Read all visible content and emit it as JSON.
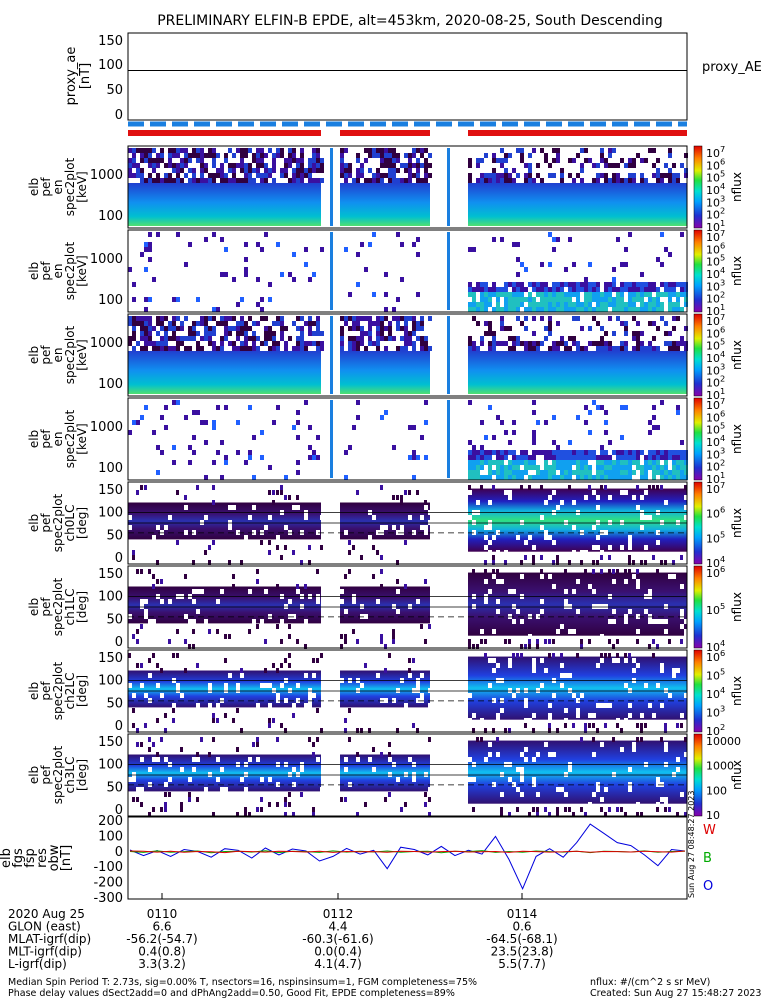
{
  "title": "PRELIMINARY ELFIN-B EPDE, alt=453km, 2020-08-25, South Descending",
  "proxy_panel": {
    "ylabel_lines": [
      "proxy_ae",
      "[nT]"
    ],
    "y_ticks": [
      "150",
      "100",
      "50",
      "0"
    ],
    "legend": "proxy_AE",
    "value": 88
  },
  "spectra_panels": [
    {
      "ylabel_lines": [
        "elb",
        "pef",
        "en",
        "spec2plot",
        "[keV]"
      ],
      "ylabel_top": "",
      "y_ticks": [
        "1000",
        "100"
      ],
      "cbar_ticks": [
        "10^7",
        "10^6",
        "10^5",
        "10^4",
        "10^3",
        "10^2",
        "10^1"
      ],
      "cbar_label": "nflux"
    },
    {
      "ylabel_lines": [
        "elb",
        "pef",
        "en",
        "spec2plot",
        "[keV]"
      ],
      "ylabel_top": "",
      "y_ticks": [
        "1000",
        "100"
      ],
      "cbar_ticks": [
        "10^7",
        "10^6",
        "10^5",
        "10^4",
        "10^3",
        "10^2",
        "10^1"
      ],
      "cbar_label": "nflux"
    },
    {
      "ylabel_lines": [
        "elb",
        "pef",
        "en",
        "spec2plot",
        "[keV]"
      ],
      "ylabel_top": "",
      "y_ticks": [
        "1000",
        "100"
      ],
      "cbar_ticks": [
        "10^7",
        "10^6",
        "10^5",
        "10^4",
        "10^3",
        "10^2",
        "10^1"
      ],
      "cbar_label": "nflux"
    },
    {
      "ylabel_lines": [
        "elb",
        "pef",
        "en",
        "spec2plot",
        "[keV]"
      ],
      "ylabel_top": "",
      "y_ticks": [
        "1000",
        "100"
      ],
      "cbar_ticks": [
        "10^7",
        "10^6",
        "10^5",
        "10^4",
        "10^3",
        "10^2",
        "10^1"
      ],
      "cbar_label": "nflux"
    }
  ],
  "pitch_panels": [
    {
      "ylabel_lines": [
        "elb",
        "pef",
        "spec2plot",
        "ch0LC",
        "[deg]"
      ],
      "y_ticks": [
        "150",
        "100",
        "50",
        "0"
      ],
      "cbar_ticks": [
        "10^7",
        "10^6",
        "10^5",
        "10^4"
      ],
      "cbar_label": "nflux"
    },
    {
      "ylabel_lines": [
        "elb",
        "pef",
        "spec2plot",
        "ch1LC",
        "[deg]"
      ],
      "y_ticks": [
        "150",
        "100",
        "50",
        "0"
      ],
      "cbar_ticks": [
        "10^6",
        "10^5",
        "10^4"
      ],
      "cbar_label": "nflux"
    },
    {
      "ylabel_lines": [
        "elb",
        "pef",
        "spec2plot",
        "ch2LC",
        "[deg]"
      ],
      "y_ticks": [
        "150",
        "100",
        "50",
        "0"
      ],
      "cbar_ticks": [
        "10^6",
        "10^5",
        "10^4",
        "10^3",
        "10^2"
      ],
      "cbar_label": "nflux"
    },
    {
      "ylabel_lines": [
        "elb",
        "pef",
        "spec2plot",
        "ch3LC",
        "[deg]"
      ],
      "y_ticks": [
        "150",
        "100",
        "50",
        "0"
      ],
      "cbar_ticks": [
        "10000",
        "1000",
        "100",
        "10"
      ],
      "cbar_label": "nflux"
    }
  ],
  "bottom_panel": {
    "ylabel_lines": [
      "elb",
      "fgs",
      "fsp",
      "res",
      "obw",
      "[nT]"
    ],
    "y_ticks": [
      "200",
      "100",
      "0",
      "-100",
      "-200",
      "-300"
    ],
    "legend": [
      {
        "label": "W",
        "color": "#dd0000"
      },
      {
        "label": "B",
        "color": "#00aa00"
      },
      {
        "label": "O",
        "color": "#0000dd"
      }
    ],
    "side_note": "Sun Aug 27 08:48:27 2023"
  },
  "chart_data": {
    "type": "line",
    "x_tick_labels": [
      "0110",
      "0112",
      "0114"
    ],
    "proxy_ae_nT": 88,
    "fgs_res_nT": {
      "W": [
        5,
        3,
        -2,
        4,
        -3,
        2,
        0,
        -5,
        3,
        1,
        -2,
        4,
        2,
        -1,
        3,
        -4,
        2,
        0,
        1,
        -3,
        4,
        2,
        -2,
        1,
        3,
        -1,
        0,
        2,
        -4,
        3,
        1,
        -2,
        0,
        4,
        -3,
        2,
        1,
        -1,
        3,
        0,
        -2,
        5
      ],
      "B": [
        2,
        -4,
        6,
        -3,
        1,
        5,
        -6,
        2,
        4,
        -2,
        7,
        -5,
        3,
        1,
        -4,
        6,
        -2,
        3,
        -1,
        5,
        -3,
        2,
        4,
        -6,
        3,
        1,
        8,
        -4,
        2,
        -3,
        5,
        1,
        -2,
        4,
        -5,
        3,
        2,
        -1,
        6,
        -3,
        2,
        4
      ],
      "O": [
        12,
        -25,
        8,
        -30,
        15,
        2,
        -35,
        20,
        10,
        -40,
        25,
        -20,
        18,
        5,
        -60,
        -30,
        22,
        -15,
        10,
        -110,
        30,
        15,
        -20,
        35,
        -25,
        10,
        -15,
        100,
        -50,
        -240,
        -30,
        20,
        -35,
        60,
        180,
        120,
        60,
        40,
        -20,
        -90,
        15,
        5
      ]
    }
  },
  "footer": {
    "rows": [
      {
        "label": "2020 Aug 25",
        "values": [
          "0110",
          "0112",
          "0114"
        ]
      },
      {
        "label": "GLON (east)",
        "values": [
          "6.6",
          "4.4",
          "0.6"
        ]
      },
      {
        "label": "MLAT-igrf(dip)",
        "values": [
          "-56.2(-54.7)",
          "-60.3(-61.6)",
          "-64.5(-68.1)"
        ]
      },
      {
        "label": "MLT-igrf(dip)",
        "values": [
          "0.4(0.8)",
          "0.0(0.4)",
          "23.5(23.8)"
        ]
      },
      {
        "label": "L-igrf(dip)",
        "values": [
          "3.3(3.2)",
          "4.1(4.7)",
          "5.5(7.7)"
        ]
      }
    ],
    "note1": "Median Spin Period T: 2.73s, sig=0.00% T, nsectors=16, nspinsinsum=1, FGM completeness=75%",
    "note2": "Phase delay values dSect2add=0 and dPhAng2add=0.50, Good Fit, EPDE completeness=89%",
    "units": "nflux: #/(cm^2 s sr MeV)",
    "created": "Created: Sun Aug 27 15:48:27 2023"
  }
}
